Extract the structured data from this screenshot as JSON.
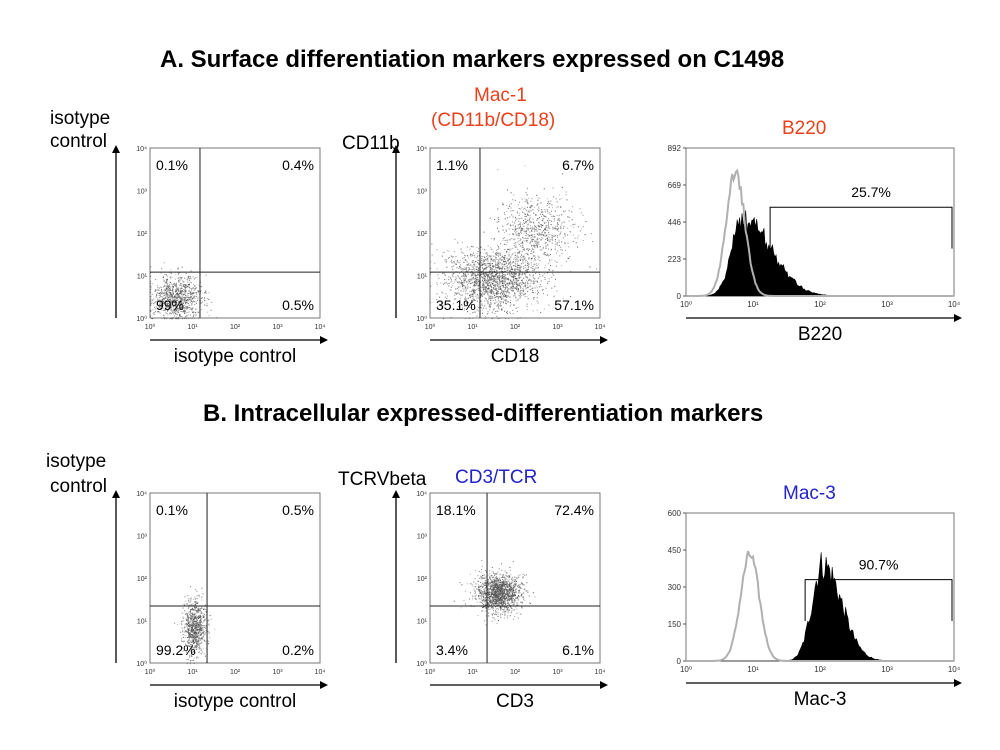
{
  "section_a_title": "A. Surface differentiation markers expressed on C1498",
  "section_b_title": "B. Intracellular expressed-differentiation markers",
  "colors": {
    "marker_red": "#e8401c",
    "marker_blue": "#2323c8",
    "fill": "#000000",
    "outline": "#b0b0b0"
  },
  "chart_data": [
    {
      "type": "scatter",
      "panel": "A-left",
      "title": "",
      "xlabel": "isotype control",
      "ylabel": "isotype control",
      "ylabel_line1": "isotype",
      "ylabel_line2": "control",
      "axis": "log",
      "xlim": [
        1,
        10000
      ],
      "ylim": [
        1,
        10000
      ],
      "ticks": [
        "10⁰",
        "10¹",
        "10²",
        "10³",
        "10⁴"
      ],
      "gate": [
        15,
        12
      ],
      "quadrants": {
        "ul": "0.1%",
        "ur": "0.4%",
        "ll": "99%",
        "lr": "0.5%"
      },
      "population": [
        {
          "center": [
            4,
            3
          ],
          "spread": [
            0.3,
            0.26
          ],
          "n": 900
        }
      ]
    },
    {
      "type": "scatter",
      "panel": "A-middle",
      "title_line1": "Mac-1",
      "title_line2": "(CD11b/CD18)",
      "xlabel": "CD18",
      "ylabel": "CD11b",
      "axis": "log",
      "xlim": [
        1,
        10000
      ],
      "ylim": [
        1,
        10000
      ],
      "ticks": [
        "10⁰",
        "10¹",
        "10²",
        "10³",
        "10⁴"
      ],
      "gate": [
        15,
        12
      ],
      "quadrants": {
        "ul": "1.1%",
        "ur": "6.7%",
        "ll": "35.1%",
        "lr": "57.1%"
      },
      "population": [
        {
          "center": [
            30,
            8
          ],
          "spread": [
            0.55,
            0.35
          ],
          "n": 1800
        },
        {
          "center": [
            300,
            120
          ],
          "spread": [
            0.45,
            0.4
          ],
          "n": 700
        }
      ]
    },
    {
      "type": "histogram",
      "panel": "A-right",
      "title": "B220",
      "xlabel": "B220",
      "axis": "log",
      "xlim": [
        1,
        10000
      ],
      "ylim": [
        0,
        892
      ],
      "yticks": [
        0,
        223,
        446,
        669,
        892
      ],
      "xticks": [
        "10⁰",
        "10¹",
        "10²",
        "10³",
        "10⁴"
      ],
      "marker_range": [
        18,
        10000
      ],
      "marker_label": "25.7%",
      "isotype_peak": {
        "center": 5.5,
        "height": 740
      },
      "sample_peak": {
        "center": 7,
        "height": 470
      }
    },
    {
      "type": "scatter",
      "panel": "B-left",
      "xlabel": "isotype control",
      "ylabel_line1": "isotype",
      "ylabel_line2": "control",
      "axis": "log",
      "xlim": [
        1,
        10000
      ],
      "ylim": [
        1,
        10000
      ],
      "ticks": [
        "10⁰",
        "10¹",
        "10²",
        "10³",
        "10⁴"
      ],
      "gate": [
        22,
        22
      ],
      "quadrants": {
        "ul": "0.1%",
        "ur": "0.5%",
        "ll": "99.2%",
        "lr": "0.2%"
      },
      "population": [
        {
          "center": [
            11,
            7
          ],
          "spread": [
            0.13,
            0.32
          ],
          "n": 800
        }
      ]
    },
    {
      "type": "scatter",
      "panel": "B-middle",
      "title": "CD3/TCR",
      "xlabel": "CD3",
      "ylabel": "TCRVbeta",
      "axis": "log",
      "xlim": [
        1,
        10000
      ],
      "ylim": [
        1,
        10000
      ],
      "ticks": [
        "10⁰",
        "10¹",
        "10²",
        "10³",
        "10⁴"
      ],
      "gate": [
        22,
        22
      ],
      "quadrants": {
        "ul": "18.1%",
        "ur": "72.4%",
        "ll": "3.4%",
        "lr": "6.1%"
      },
      "population": [
        {
          "center": [
            40,
            45
          ],
          "spread": [
            0.26,
            0.22
          ],
          "n": 1500
        }
      ]
    },
    {
      "type": "histogram",
      "panel": "B-right",
      "title": "Mac-3",
      "xlabel": "Mac-3",
      "axis": "log",
      "xlim": [
        1,
        10000
      ],
      "ylim": [
        0,
        600
      ],
      "yticks": [
        0,
        150,
        300,
        450,
        600
      ],
      "xticks": [
        "10⁰",
        "10¹",
        "10²",
        "10³",
        "10⁴"
      ],
      "marker_range": [
        60,
        10000
      ],
      "marker_label": "90.7%",
      "isotype_peak": {
        "center": 9,
        "height": 430
      },
      "sample_peak": {
        "center": 110,
        "height": 390
      }
    }
  ]
}
